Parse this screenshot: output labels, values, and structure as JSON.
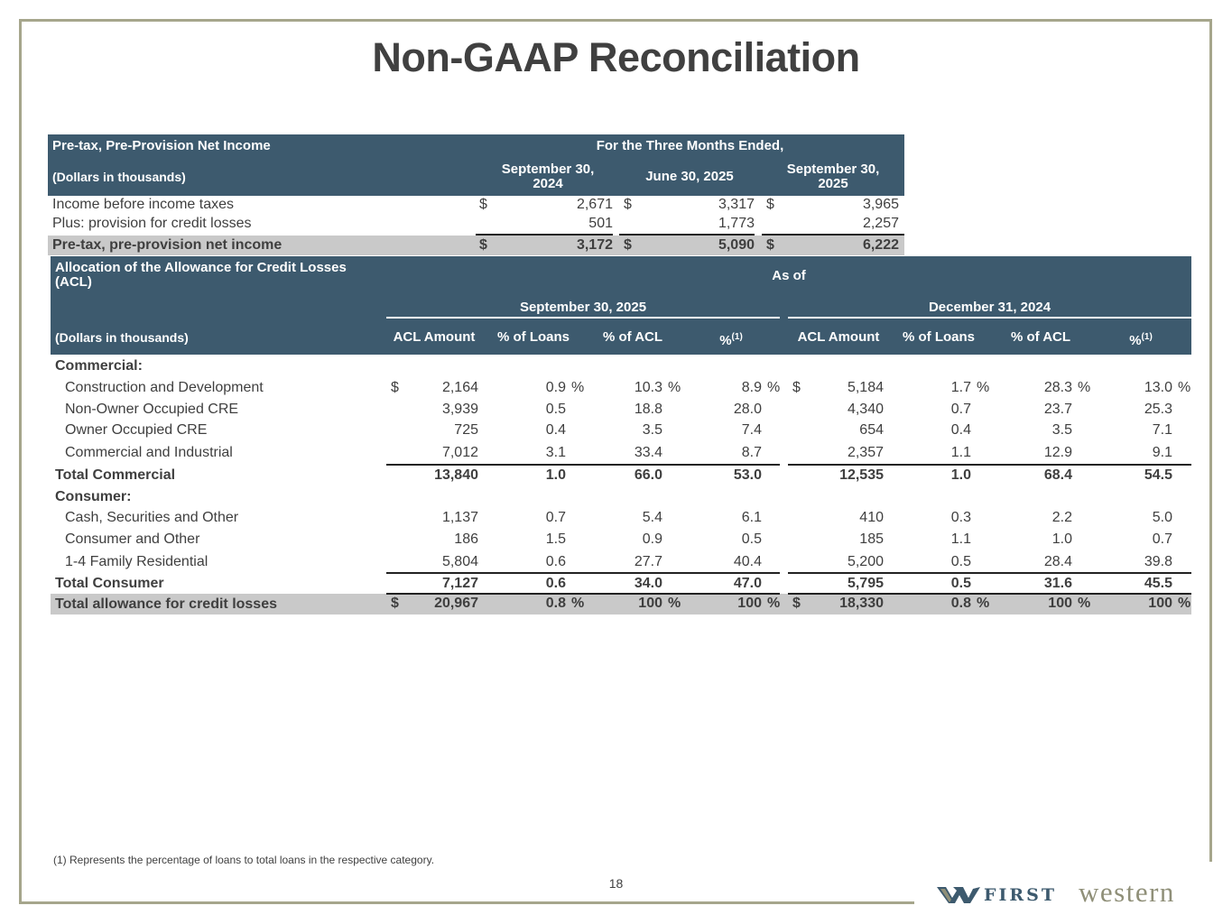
{
  "title": "Non-GAAP Reconciliation",
  "ppni": {
    "title": "Pre-tax, Pre-Provision Net Income",
    "period_header": "For the Three Months Ended,",
    "units": "(Dollars in thousands)",
    "columns": [
      "September 30,\n2024",
      "June 30, 2025",
      "September 30,\n2025"
    ],
    "rows": [
      {
        "label": "Income before income taxes",
        "values": [
          "2,671",
          "3,317",
          "3,965"
        ],
        "dollar": true
      },
      {
        "label": "Plus: provision for credit losses",
        "values": [
          "501",
          "1,773",
          "2,257"
        ],
        "dollar": false
      }
    ],
    "total": {
      "label": "Pre-tax, pre-provision net income",
      "values": [
        "3,172",
        "5,090",
        "6,222"
      ]
    }
  },
  "acl": {
    "title": "Allocation of the Allowance for Credit Losses\n(ACL)",
    "as_of": "As of",
    "periods": [
      "September 30, 2025",
      "December 31, 2024"
    ],
    "units": "(Dollars in thousands)",
    "columns": [
      "ACL Amount",
      "% of Loans",
      "% of ACL",
      "%"
    ],
    "footnote_ref": "(1)",
    "sections": [
      {
        "heading": "Commercial:",
        "rows": [
          {
            "label": "Construction and Development",
            "sep": [
              "2,164",
              "0.9",
              "10.3",
              "8.9"
            ],
            "dec": [
              "5,184",
              "1.7",
              "28.3",
              "13.0"
            ]
          },
          {
            "label": "Non-Owner Occupied CRE",
            "sep": [
              "3,939",
              "0.5",
              "18.8",
              "28.0"
            ],
            "dec": [
              "4,340",
              "0.7",
              "23.7",
              "25.3"
            ]
          },
          {
            "label": "Owner Occupied CRE",
            "sep": [
              "725",
              "0.4",
              "3.5",
              "7.4"
            ],
            "dec": [
              "654",
              "0.4",
              "3.5",
              "7.1"
            ]
          },
          {
            "label": "Commercial and Industrial",
            "sep": [
              "7,012",
              "3.1",
              "33.4",
              "8.7"
            ],
            "dec": [
              "2,357",
              "1.1",
              "12.9",
              "9.1"
            ]
          }
        ],
        "total": {
          "label": "Total Commercial",
          "sep": [
            "13,840",
            "1.0",
            "66.0",
            "53.0"
          ],
          "dec": [
            "12,535",
            "1.0",
            "68.4",
            "54.5"
          ]
        }
      },
      {
        "heading": "Consumer:",
        "rows": [
          {
            "label": "Cash, Securities and Other",
            "sep": [
              "1,137",
              "0.7",
              "5.4",
              "6.1"
            ],
            "dec": [
              "410",
              "0.3",
              "2.2",
              "5.0"
            ]
          },
          {
            "label": "Consumer and Other",
            "sep": [
              "186",
              "1.5",
              "0.9",
              "0.5"
            ],
            "dec": [
              "185",
              "1.1",
              "1.0",
              "0.7"
            ]
          },
          {
            "label": "1-4 Family Residential",
            "sep": [
              "5,804",
              "0.6",
              "27.7",
              "40.4"
            ],
            "dec": [
              "5,200",
              "0.5",
              "28.4",
              "39.8"
            ]
          }
        ],
        "total": {
          "label": "Total Consumer",
          "sep": [
            "7,127",
            "0.6",
            "34.0",
            "47.0"
          ],
          "dec": [
            "5,795",
            "0.5",
            "31.6",
            "45.5"
          ]
        }
      }
    ],
    "grand_total": {
      "label": "Total allowance for credit losses",
      "sep": [
        "20,967",
        "0.8",
        "100",
        "100"
      ],
      "dec": [
        "18,330",
        "0.8",
        "100",
        "100"
      ]
    }
  },
  "footnote": "(1)  Represents the percentage of loans to total loans in the respective category.",
  "page_number": "18",
  "logo": {
    "first": "FIRST",
    "western": "western"
  },
  "colors": {
    "header_bg": "#3d5a6e",
    "band": "#c9c9c9",
    "frame": "#a6a68c"
  }
}
